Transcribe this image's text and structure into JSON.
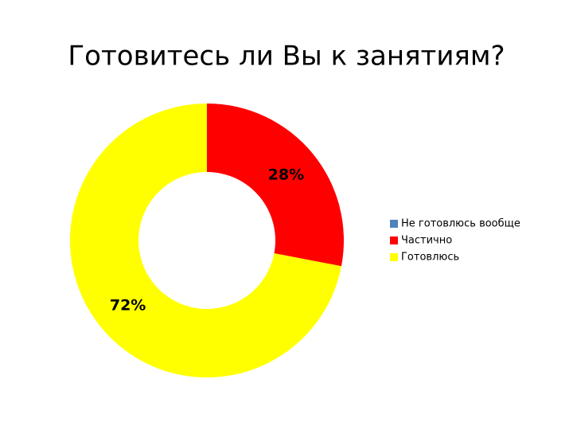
{
  "chart_data": {
    "type": "donut",
    "title": "Готовитесь ли Вы к занятиям?",
    "categories": [
      "Не готовлюсь вообще",
      "Частично",
      "Готовлюсь"
    ],
    "values": [
      0,
      28,
      72
    ],
    "value_labels": [
      null,
      "28%",
      "72%"
    ],
    "colors": [
      "#4f81bd",
      "#ff0000",
      "#ffff00"
    ],
    "legend": "right"
  }
}
